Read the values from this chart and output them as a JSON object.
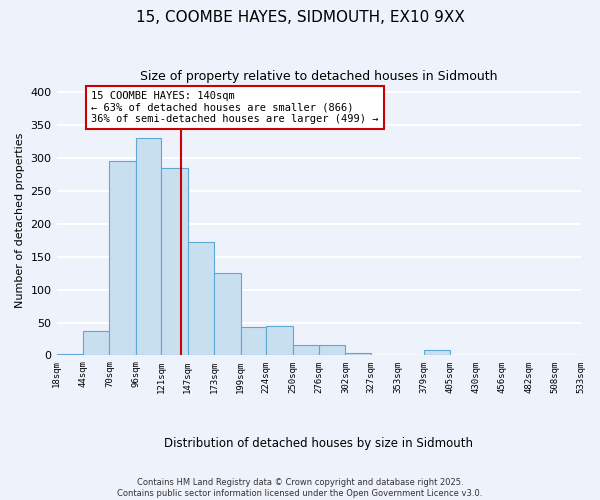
{
  "title": "15, COOMBE HAYES, SIDMOUTH, EX10 9XX",
  "subtitle": "Size of property relative to detached houses in Sidmouth",
  "xlabel": "Distribution of detached houses by size in Sidmouth",
  "ylabel": "Number of detached properties",
  "bar_edges": [
    18,
    44,
    70,
    96,
    121,
    147,
    173,
    199,
    224,
    250,
    276,
    302,
    327,
    353,
    379,
    405,
    430,
    456,
    482,
    508,
    533
  ],
  "bar_heights": [
    2,
    37,
    295,
    330,
    284,
    172,
    126,
    43,
    45,
    16,
    16,
    4,
    0,
    0,
    8,
    0,
    0,
    0,
    1,
    0
  ],
  "bar_color": "#c8dff0",
  "bar_edgecolor": "#5fa8d3",
  "property_line_x": 140,
  "property_line_color": "#cc0000",
  "annotation_text": "15 COOMBE HAYES: 140sqm\n← 63% of detached houses are smaller (866)\n36% of semi-detached houses are larger (499) →",
  "annotation_box_color": "#ffffff",
  "annotation_box_edgecolor": "#cc0000",
  "ylim": [
    0,
    410
  ],
  "yticks": [
    0,
    50,
    100,
    150,
    200,
    250,
    300,
    350,
    400
  ],
  "background_color": "#eef2fb",
  "grid_color": "#ffffff",
  "footer_line1": "Contains HM Land Registry data © Crown copyright and database right 2025.",
  "footer_line2": "Contains public sector information licensed under the Open Government Licence v3.0.",
  "tick_labels": [
    "18sqm",
    "44sqm",
    "70sqm",
    "96sqm",
    "121sqm",
    "147sqm",
    "173sqm",
    "199sqm",
    "224sqm",
    "250sqm",
    "276sqm",
    "302sqm",
    "327sqm",
    "353sqm",
    "379sqm",
    "405sqm",
    "430sqm",
    "456sqm",
    "482sqm",
    "508sqm",
    "533sqm"
  ]
}
